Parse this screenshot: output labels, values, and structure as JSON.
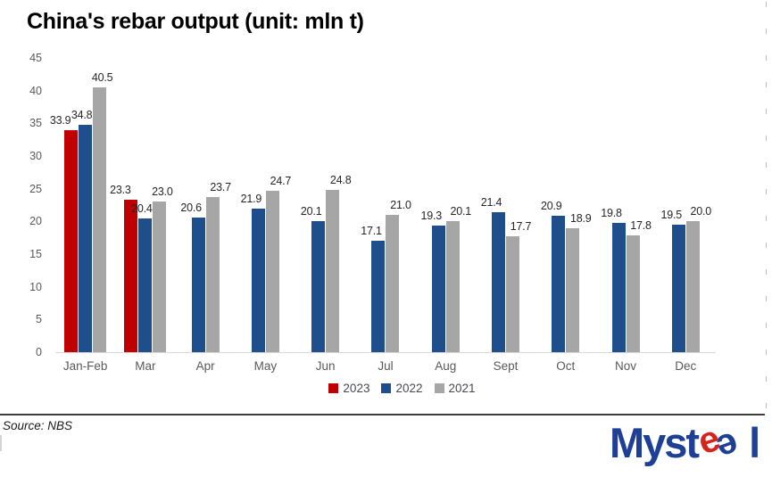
{
  "title": "China's rebar output (unit: mln t)",
  "source": "Source: NBS",
  "logo": {
    "prefix": "Myst",
    "e1": "e",
    "e2": "e",
    "suffix": "l",
    "full": "Mysteel"
  },
  "colors": {
    "red": "#C00000",
    "blue": "#1F4E8C",
    "gray": "#A6A6A6",
    "baseline": "#D9D9D9",
    "axis_text": "#595959",
    "data_label_text": "#262626",
    "logo_blue": "#1E3F96",
    "logo_red": "#D7251D"
  },
  "chart_data": {
    "type": "bar",
    "title": "China's rebar output (unit: mln t)",
    "unit": "mln t",
    "categories": [
      "Jan-Feb",
      "Mar",
      "Apr",
      "May",
      "Jun",
      "Jul",
      "Aug",
      "Sept",
      "Oct",
      "Nov",
      "Dec"
    ],
    "series": [
      {
        "name": "2023",
        "color": "#C00000",
        "values": [
          33.9,
          23.3,
          null,
          null,
          null,
          null,
          null,
          null,
          null,
          null,
          null
        ]
      },
      {
        "name": "2022",
        "color": "#1F4E8C",
        "values": [
          34.8,
          20.4,
          20.6,
          21.9,
          20.1,
          17.1,
          19.3,
          21.4,
          20.9,
          19.8,
          19.5
        ]
      },
      {
        "name": "2021",
        "color": "#A6A6A6",
        "values": [
          40.5,
          23.0,
          23.7,
          24.7,
          24.8,
          21.0,
          20.1,
          17.7,
          18.9,
          17.8,
          20.0
        ]
      }
    ],
    "y_ticks": [
      0,
      5,
      10,
      15,
      20,
      25,
      30,
      35,
      40,
      45
    ],
    "ylim": [
      0,
      45
    ],
    "grid": false,
    "data_labels": true,
    "data_label_decimals": 1,
    "legend_position": "bottom"
  },
  "legend": [
    {
      "label": "2023",
      "color": "#C00000"
    },
    {
      "label": "2022",
      "color": "#1F4E8C"
    },
    {
      "label": "2021",
      "color": "#A6A6A6"
    }
  ]
}
